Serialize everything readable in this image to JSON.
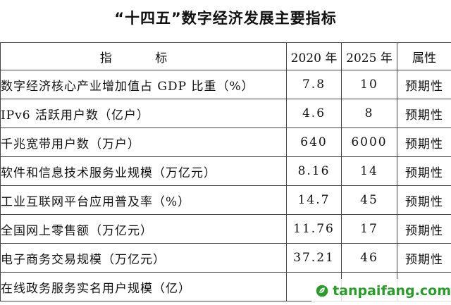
{
  "title": "“十四五”数字经济发展主要指标",
  "columns": {
    "indicator": "指 标",
    "y2020": "2020 年",
    "y2025": "2025 年",
    "attribute": "属性"
  },
  "rows": [
    {
      "name": "数字经济核心产业增加值占 GDP 比重（%）",
      "v2020": "7.8",
      "v2025": "10",
      "attr": "预期性"
    },
    {
      "name": "IPv6 活跃用户数（亿户）",
      "v2020": "4.6",
      "v2025": "8",
      "attr": "预期性"
    },
    {
      "name": "千兆宽带用户数（万户）",
      "v2020": "640",
      "v2025": "6000",
      "attr": "预期性"
    },
    {
      "name": "软件和信息技术服务业规模（万亿元）",
      "v2020": "8.16",
      "v2025": "14",
      "attr": "预期性"
    },
    {
      "name": "工业互联网平台应用普及率（%）",
      "v2020": "14.7",
      "v2025": "45",
      "attr": "预期性"
    },
    {
      "name": "全国网上零售额（万亿元）",
      "v2020": "11.76",
      "v2025": "17",
      "attr": "预期性"
    },
    {
      "name": "电子商务交易规模（万亿元）",
      "v2020": "37.21",
      "v2025": "46",
      "attr": "预期性"
    },
    {
      "name": "在线政务服务实名用户规模（亿）",
      "v2020": "",
      "v2025": "",
      "attr": ""
    }
  ],
  "watermark": {
    "text": "tanpaifang.com",
    "color": "#2e9a2e",
    "icon": "leaf-logo-icon"
  }
}
